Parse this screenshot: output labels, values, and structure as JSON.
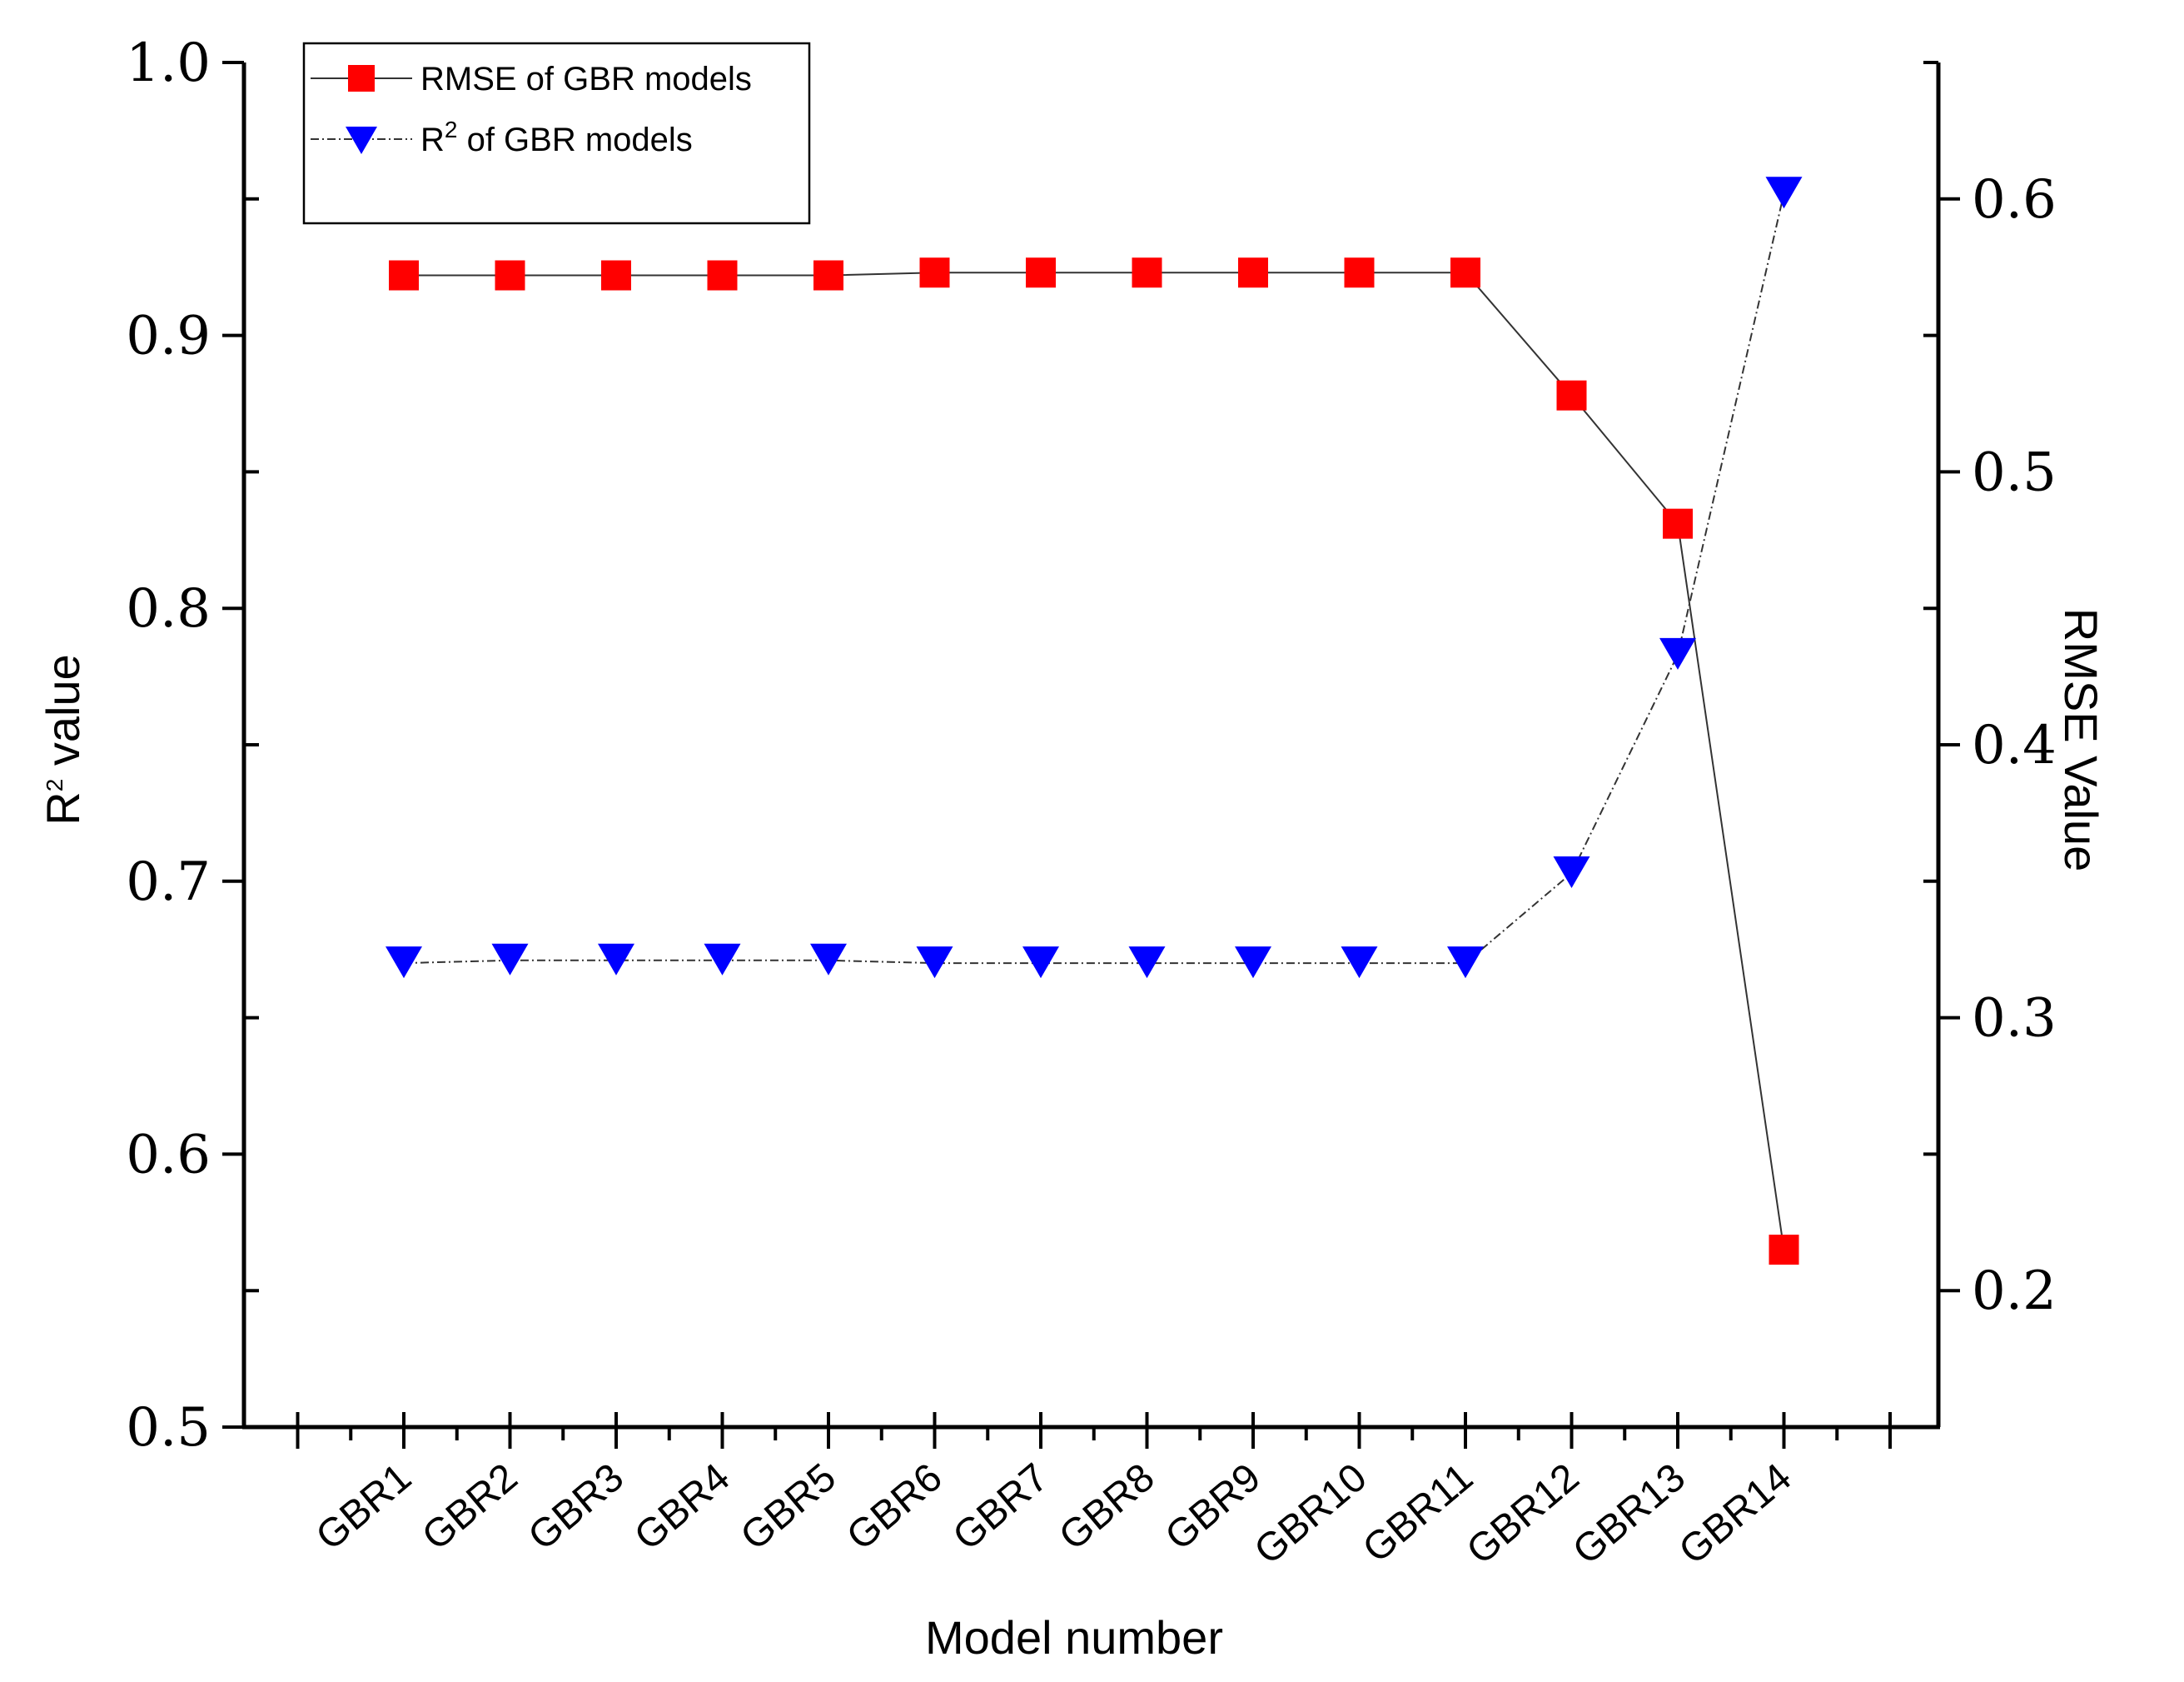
{
  "chart_data": {
    "type": "line",
    "title": "",
    "xlabel": "Model number",
    "ylabel_left": {
      "base": "R",
      "sup": "2",
      "rest": " value"
    },
    "ylabel_right": "RMSE Value",
    "categories": [
      "GBR1",
      "GBR2",
      "GBR3",
      "GBR4",
      "GBR5",
      "GBR6",
      "GBR7",
      "GBR8",
      "GBR9",
      "GBR10",
      "GBR11",
      "GBR12",
      "GBR13",
      "GBR14"
    ],
    "ylim_left": [
      0.5,
      1.0
    ],
    "ylim_right": [
      0.15,
      0.65
    ],
    "left_ticks": [
      "0.5",
      "0.6",
      "0.7",
      "0.8",
      "0.9",
      "1.0"
    ],
    "right_ticks": [
      "0.2",
      "0.3",
      "0.4",
      "0.5",
      "0.6"
    ],
    "series": [
      {
        "name": "RMSE of GBR models",
        "axis": "right",
        "marker": "square",
        "color": "#ff0000",
        "line_style": "solid",
        "values": [
          0.572,
          0.572,
          0.572,
          0.572,
          0.572,
          0.573,
          0.573,
          0.573,
          0.573,
          0.573,
          0.573,
          0.528,
          0.481,
          0.215
        ]
      },
      {
        "name": "R2 of GBR models",
        "axis": "left",
        "marker": "triangle-down",
        "color": "#0000ff",
        "line_style": "dash-dot",
        "values": [
          0.67,
          0.671,
          0.671,
          0.671,
          0.671,
          0.67,
          0.67,
          0.67,
          0.67,
          0.67,
          0.67,
          0.703,
          0.783,
          0.952
        ]
      }
    ],
    "legend": {
      "position": "top-left",
      "entries": [
        {
          "text": "RMSE of GBR models"
        },
        {
          "base": "R",
          "sup": "2",
          "rest": " of GBR models"
        }
      ]
    }
  }
}
